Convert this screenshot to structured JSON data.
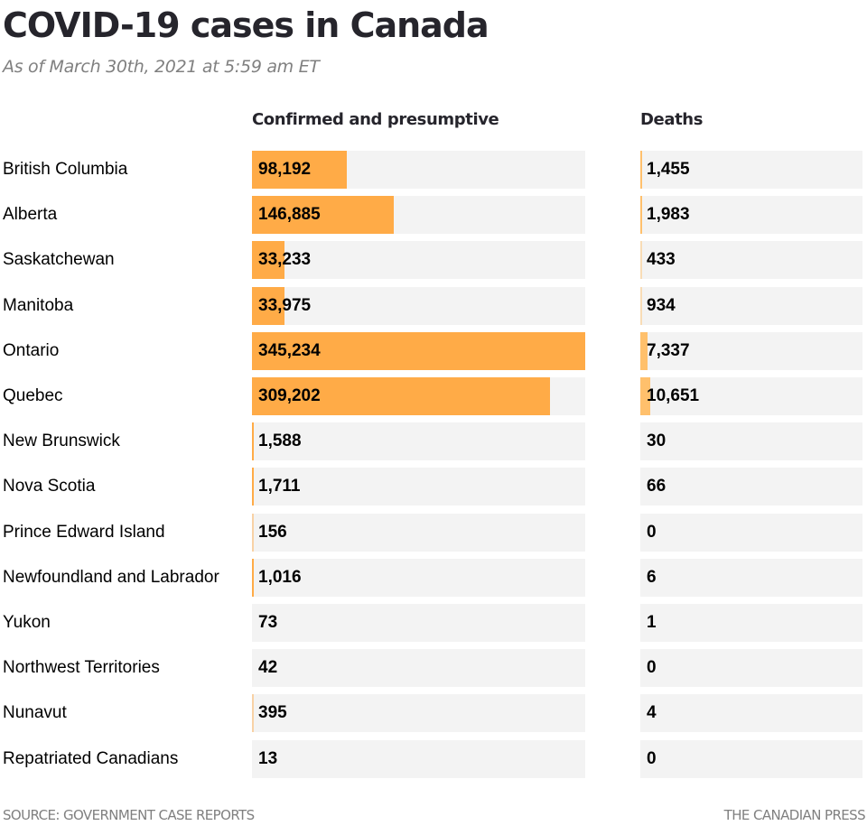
{
  "header": {
    "title": "COVID-19 cases in Canada",
    "subtitle": "As of March 30th, 2021 at 5:59 am ET"
  },
  "footer": {
    "source": "SOURCE: GOVERNMENT CASE REPORTS",
    "credit": "THE CANADIAN PRESS"
  },
  "colors": {
    "cases_bar": "#ffab47",
    "deaths_bar": "#ffc06c",
    "track": "#f3f3f3"
  },
  "chart_data": {
    "type": "bar",
    "orientation": "horizontal",
    "title": "COVID-19 cases in Canada",
    "subtitle": "As of March 30th, 2021 at 5:59 am ET",
    "categories": [
      "British Columbia",
      "Alberta",
      "Saskatchewan",
      "Manitoba",
      "Ontario",
      "Quebec",
      "New Brunswick",
      "Nova Scotia",
      "Prince Edward Island",
      "Newfoundland and Labrador",
      "Yukon",
      "Northwest Territories",
      "Nunavut",
      "Repatriated Canadians"
    ],
    "series": [
      {
        "name": "Confirmed and presumptive",
        "values": [
          98192,
          146885,
          33233,
          33975,
          345234,
          309202,
          1588,
          1711,
          156,
          1016,
          73,
          42,
          395,
          13
        ],
        "labels": [
          "98,192",
          "146,885",
          "33,233",
          "33,975",
          "345,234",
          "309,202",
          "1,588",
          "1,711",
          "156",
          "1,016",
          "73",
          "42",
          "395",
          "13"
        ]
      },
      {
        "name": "Deaths",
        "values": [
          1455,
          1983,
          433,
          934,
          7337,
          10651,
          30,
          66,
          0,
          6,
          1,
          0,
          4,
          0
        ],
        "labels": [
          "1,455",
          "1,983",
          "433",
          "934",
          "7,337",
          "10,651",
          "30",
          "66",
          "0",
          "6",
          "1",
          "0",
          "4",
          "0"
        ]
      }
    ],
    "xlim": [
      0,
      345234
    ],
    "grid": false,
    "legend": "none",
    "source": "SOURCE: GOVERNMENT CASE REPORTS",
    "credit": "THE CANADIAN PRESS"
  }
}
